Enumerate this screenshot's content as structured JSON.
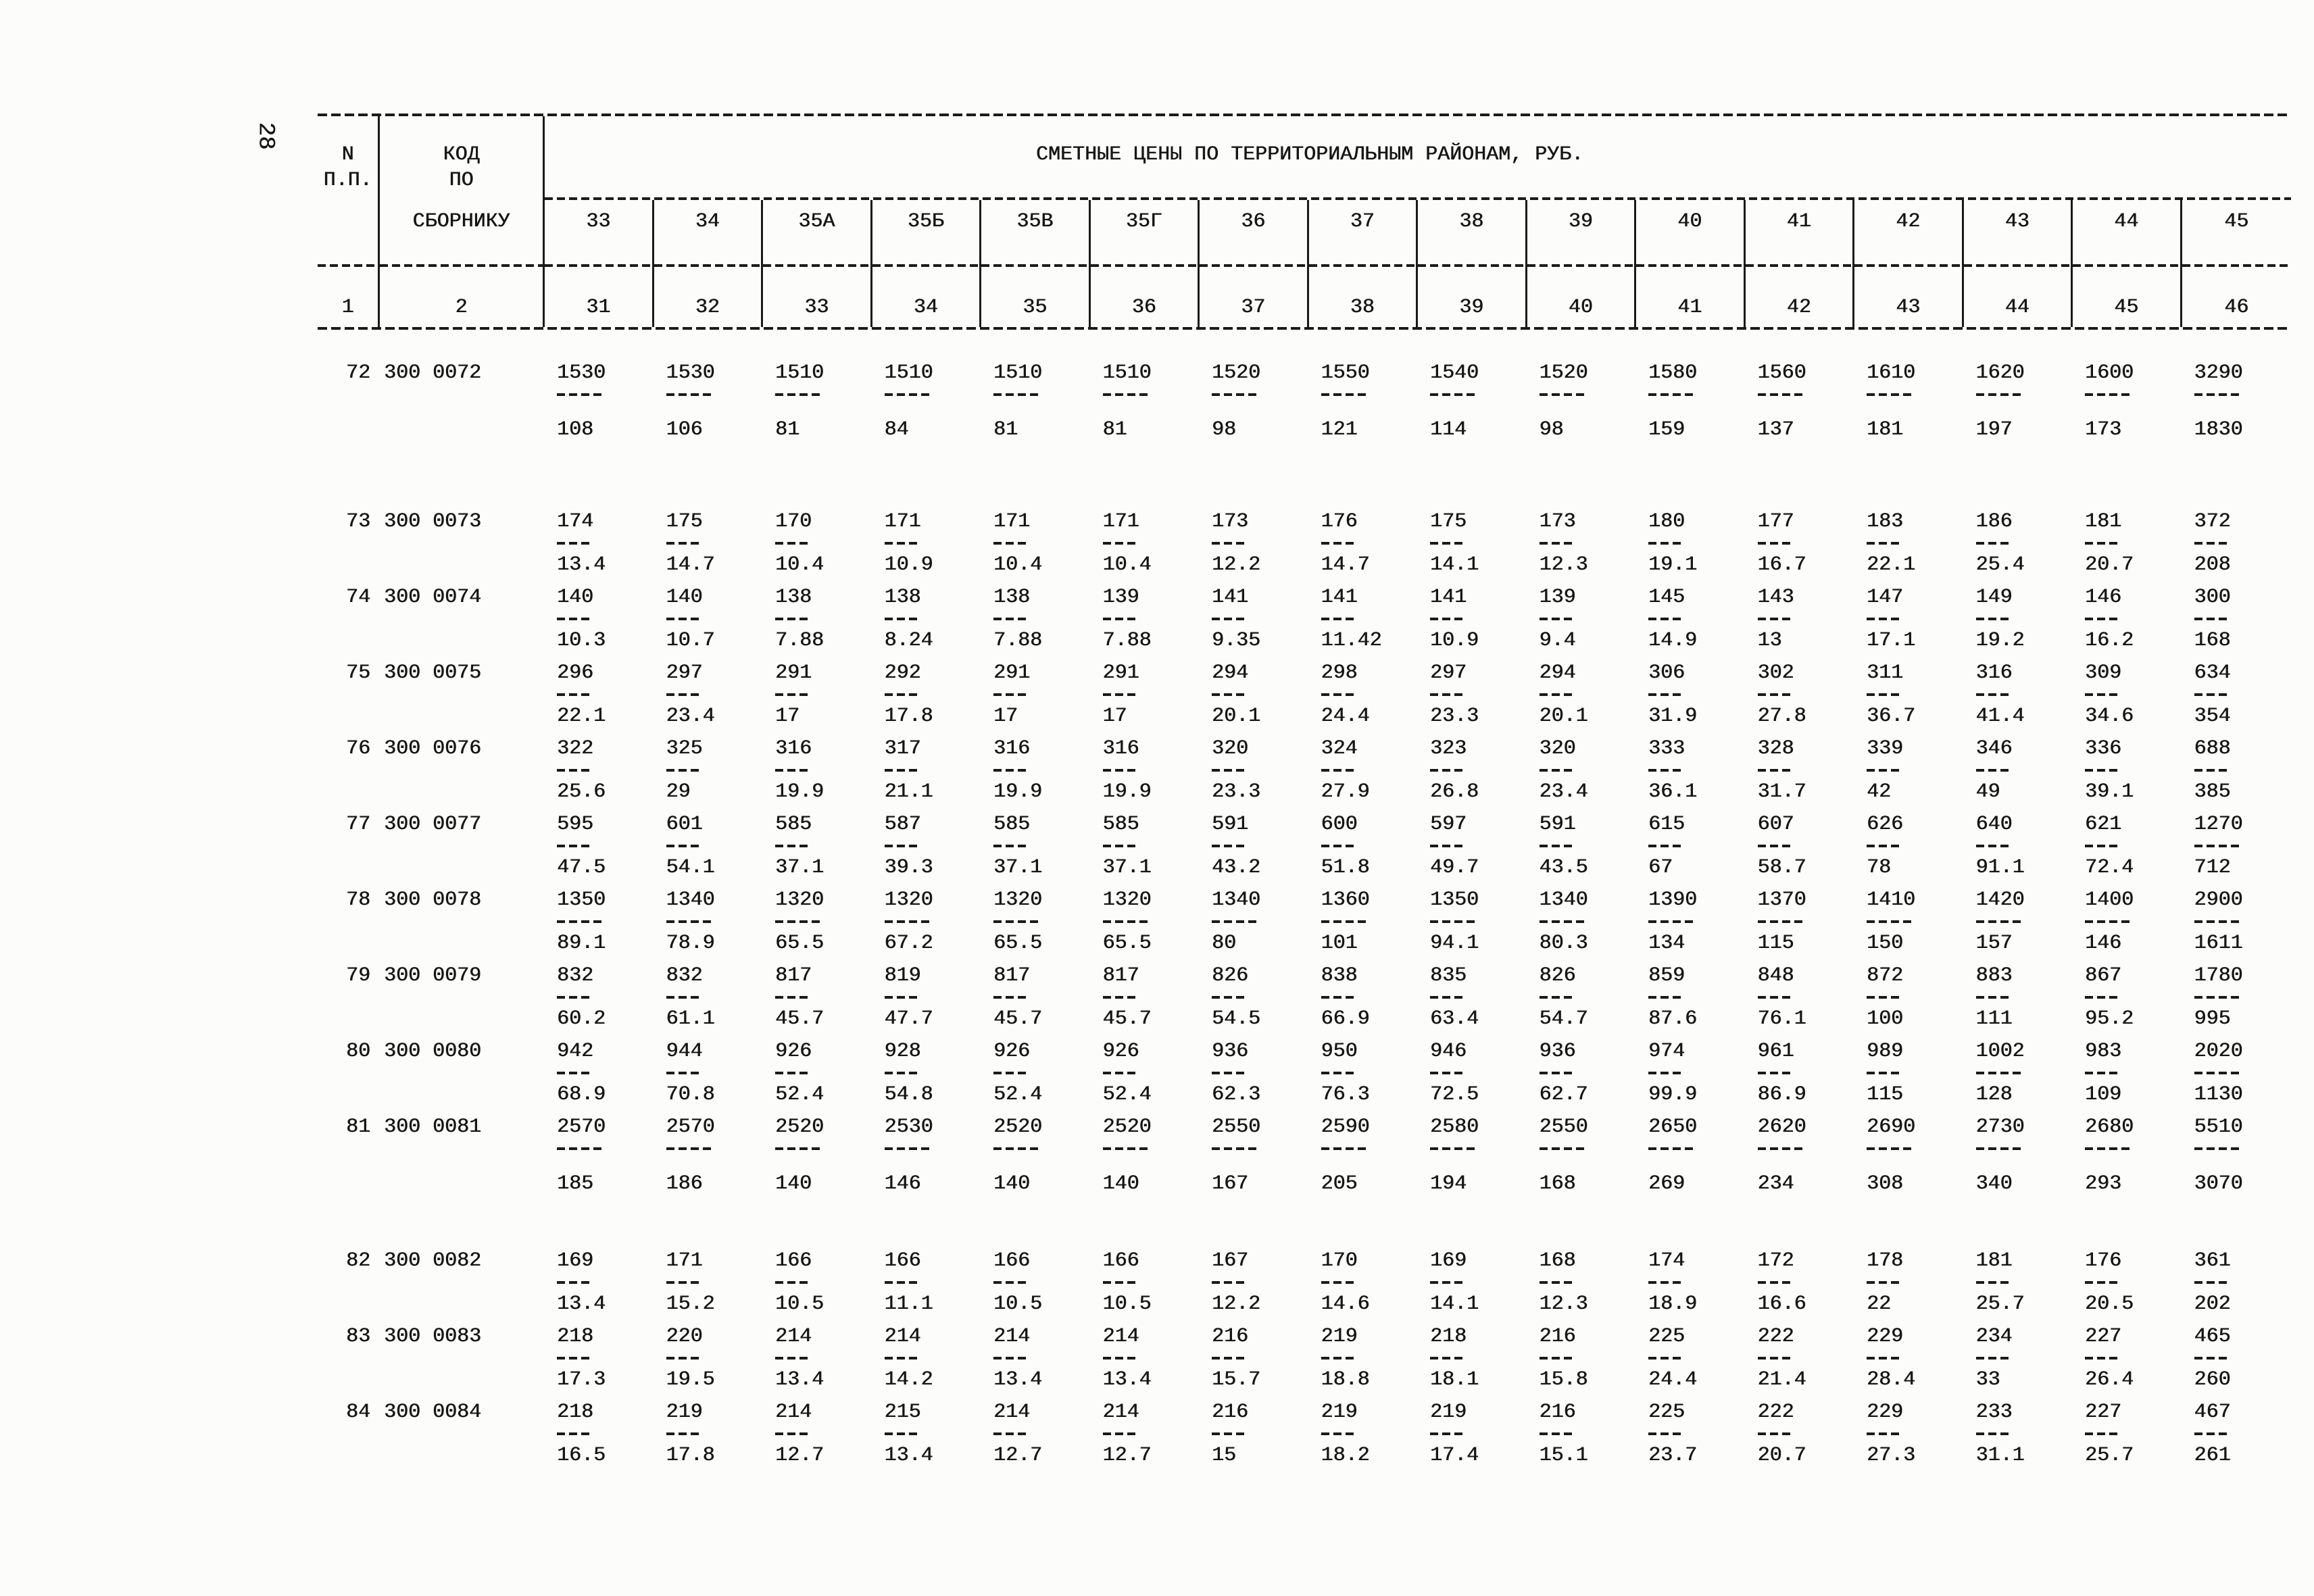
{
  "page": {
    "number": "28"
  },
  "header": {
    "title": "СМЕТНЫЕ ЦЕНЫ ПО ТЕРРИТОРИАЛЬНЫМ РАЙОНАМ, РУБ.",
    "col_n": {
      "line1": "N",
      "line2": "П.П.",
      "index": "1"
    },
    "col_code": {
      "line1": "КОД",
      "line2": "ПО",
      "line3": "СБОРНИКУ",
      "index": "2"
    },
    "district_columns": [
      "33",
      "34",
      "35А",
      "35Б",
      "35В",
      "35Г",
      "36",
      "37",
      "38",
      "39",
      "40",
      "41",
      "42",
      "43",
      "44",
      "45"
    ],
    "column_indices": [
      "31",
      "32",
      "33",
      "34",
      "35",
      "36",
      "37",
      "38",
      "39",
      "40",
      "41",
      "42",
      "43",
      "44",
      "45",
      "46"
    ]
  },
  "table": {
    "rows": [
      {
        "n": "72",
        "code": "300 0072",
        "upper": [
          "1530",
          "1530",
          "1510",
          "1510",
          "1510",
          "1510",
          "1520",
          "1550",
          "1540",
          "1520",
          "1580",
          "1560",
          "1610",
          "1620",
          "1600",
          "3290"
        ],
        "lower": [
          "108",
          "106",
          "81",
          "84",
          "81",
          "81",
          "98",
          "121",
          "114",
          "98",
          "159",
          "137",
          "181",
          "197",
          "173",
          "1830"
        ]
      },
      {
        "n": "73",
        "code": "300 0073",
        "upper": [
          "174",
          "175",
          "170",
          "171",
          "171",
          "171",
          "173",
          "176",
          "175",
          "173",
          "180",
          "177",
          "183",
          "186",
          "181",
          "372"
        ],
        "lower": [
          "13.4",
          "14.7",
          "10.4",
          "10.9",
          "10.4",
          "10.4",
          "12.2",
          "14.7",
          "14.1",
          "12.3",
          "19.1",
          "16.7",
          "22.1",
          "25.4",
          "20.7",
          "208"
        ]
      },
      {
        "n": "74",
        "code": "300 0074",
        "upper": [
          "140",
          "140",
          "138",
          "138",
          "138",
          "139",
          "141",
          "141",
          "141",
          "139",
          "145",
          "143",
          "147",
          "149",
          "146",
          "300"
        ],
        "lower": [
          "10.3",
          "10.7",
          "7.88",
          "8.24",
          "7.88",
          "7.88",
          "9.35",
          "11.42",
          "10.9",
          "9.4",
          "14.9",
          "13",
          "17.1",
          "19.2",
          "16.2",
          "168"
        ]
      },
      {
        "n": "75",
        "code": "300 0075",
        "upper": [
          "296",
          "297",
          "291",
          "292",
          "291",
          "291",
          "294",
          "298",
          "297",
          "294",
          "306",
          "302",
          "311",
          "316",
          "309",
          "634"
        ],
        "lower": [
          "22.1",
          "23.4",
          "17",
          "17.8",
          "17",
          "17",
          "20.1",
          "24.4",
          "23.3",
          "20.1",
          "31.9",
          "27.8",
          "36.7",
          "41.4",
          "34.6",
          "354"
        ]
      },
      {
        "n": "76",
        "code": "300 0076",
        "upper": [
          "322",
          "325",
          "316",
          "317",
          "316",
          "316",
          "320",
          "324",
          "323",
          "320",
          "333",
          "328",
          "339",
          "346",
          "336",
          "688"
        ],
        "lower": [
          "25.6",
          "29",
          "19.9",
          "21.1",
          "19.9",
          "19.9",
          "23.3",
          "27.9",
          "26.8",
          "23.4",
          "36.1",
          "31.7",
          "42",
          "49",
          "39.1",
          "385"
        ]
      },
      {
        "n": "77",
        "code": "300 0077",
        "upper": [
          "595",
          "601",
          "585",
          "587",
          "585",
          "585",
          "591",
          "600",
          "597",
          "591",
          "615",
          "607",
          "626",
          "640",
          "621",
          "1270"
        ],
        "lower": [
          "47.5",
          "54.1",
          "37.1",
          "39.3",
          "37.1",
          "37.1",
          "43.2",
          "51.8",
          "49.7",
          "43.5",
          "67",
          "58.7",
          "78",
          "91.1",
          "72.4",
          "712"
        ]
      },
      {
        "n": "78",
        "code": "300 0078",
        "upper": [
          "1350",
          "1340",
          "1320",
          "1320",
          "1320",
          "1320",
          "1340",
          "1360",
          "1350",
          "1340",
          "1390",
          "1370",
          "1410",
          "1420",
          "1400",
          "2900"
        ],
        "lower": [
          "89.1",
          "78.9",
          "65.5",
          "67.2",
          "65.5",
          "65.5",
          "80",
          "101",
          "94.1",
          "80.3",
          "134",
          "115",
          "150",
          "157",
          "146",
          "1611"
        ]
      },
      {
        "n": "79",
        "code": "300 0079",
        "upper": [
          "832",
          "832",
          "817",
          "819",
          "817",
          "817",
          "826",
          "838",
          "835",
          "826",
          "859",
          "848",
          "872",
          "883",
          "867",
          "1780"
        ],
        "lower": [
          "60.2",
          "61.1",
          "45.7",
          "47.7",
          "45.7",
          "45.7",
          "54.5",
          "66.9",
          "63.4",
          "54.7",
          "87.6",
          "76.1",
          "100",
          "111",
          "95.2",
          "995"
        ]
      },
      {
        "n": "80",
        "code": "300 0080",
        "upper": [
          "942",
          "944",
          "926",
          "928",
          "926",
          "926",
          "936",
          "950",
          "946",
          "936",
          "974",
          "961",
          "989",
          "1002",
          "983",
          "2020"
        ],
        "lower": [
          "68.9",
          "70.8",
          "52.4",
          "54.8",
          "52.4",
          "52.4",
          "62.3",
          "76.3",
          "72.5",
          "62.7",
          "99.9",
          "86.9",
          "115",
          "128",
          "109",
          "1130"
        ]
      },
      {
        "n": "81",
        "code": "300 0081",
        "upper": [
          "2570",
          "2570",
          "2520",
          "2530",
          "2520",
          "2520",
          "2550",
          "2590",
          "2580",
          "2550",
          "2650",
          "2620",
          "2690",
          "2730",
          "2680",
          "5510"
        ],
        "lower": [
          "185",
          "186",
          "140",
          "146",
          "140",
          "140",
          "167",
          "205",
          "194",
          "168",
          "269",
          "234",
          "308",
          "340",
          "293",
          "3070"
        ]
      },
      {
        "n": "82",
        "code": "300 0082",
        "upper": [
          "169",
          "171",
          "166",
          "166",
          "166",
          "166",
          "167",
          "170",
          "169",
          "168",
          "174",
          "172",
          "178",
          "181",
          "176",
          "361"
        ],
        "lower": [
          "13.4",
          "15.2",
          "10.5",
          "11.1",
          "10.5",
          "10.5",
          "12.2",
          "14.6",
          "14.1",
          "12.3",
          "18.9",
          "16.6",
          "22",
          "25.7",
          "20.5",
          "202"
        ]
      },
      {
        "n": "83",
        "code": "300 0083",
        "upper": [
          "218",
          "220",
          "214",
          "214",
          "214",
          "214",
          "216",
          "219",
          "218",
          "216",
          "225",
          "222",
          "229",
          "234",
          "227",
          "465"
        ],
        "lower": [
          "17.3",
          "19.5",
          "13.4",
          "14.2",
          "13.4",
          "13.4",
          "15.7",
          "18.8",
          "18.1",
          "15.8",
          "24.4",
          "21.4",
          "28.4",
          "33",
          "26.4",
          "260"
        ]
      },
      {
        "n": "84",
        "code": "300 0084",
        "upper": [
          "218",
          "219",
          "214",
          "215",
          "214",
          "214",
          "216",
          "219",
          "219",
          "216",
          "225",
          "222",
          "229",
          "233",
          "227",
          "467"
        ],
        "lower": [
          "16.5",
          "17.8",
          "12.7",
          "13.4",
          "12.7",
          "12.7",
          "15",
          "18.2",
          "17.4",
          "15.1",
          "23.7",
          "20.7",
          "27.3",
          "31.1",
          "25.7",
          "261"
        ]
      }
    ]
  }
}
